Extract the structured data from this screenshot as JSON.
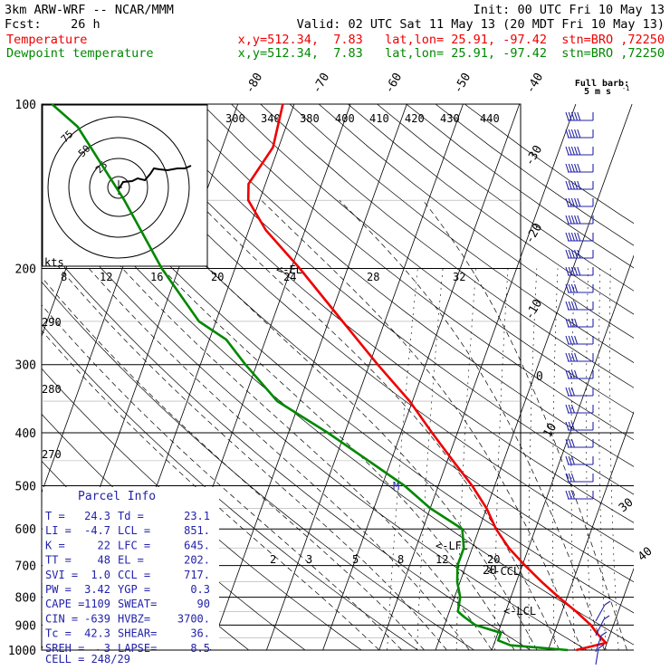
{
  "header": {
    "model": "3km ARW-WRF -- NCAR/MMM",
    "init": "Init: 00 UTC Fri 10 May 13",
    "fcst": "Fcst:    26 h",
    "valid": "Valid: 02 UTC Sat 11 May 13 (20 MDT Fri 10 May 13)",
    "temp_label": "Temperature",
    "temp_info": "x,y=512.34,  7.83   lat,lon= 25.91, -97.42  stn=BRO ,72250",
    "dew_label": "Dewpoint temperature",
    "dew_info": "x,y=512.34,  7.83   lat,lon= 25.91, -97.42  stn=BRO ,72250"
  },
  "colors": {
    "temperature": "#ee0000",
    "dewpoint": "#008800",
    "grid": "#000000",
    "wind": "#2222aa"
  },
  "barb_key": {
    "line1": "Full barb:",
    "line2": "5 m s",
    "sup": "-1"
  },
  "hodograph": {
    "units_label": "kts",
    "ring_labels": [
      "75",
      "50",
      "25"
    ]
  },
  "parcel_info": {
    "title": "Parcel Info",
    "rows": [
      {
        "l": "T   =",
        "lv": "24.3",
        "r": "Td =",
        "rv": "23.1"
      },
      {
        "l": "LI  =",
        "lv": "-4.7",
        "r": "LCL =",
        "rv": "851."
      },
      {
        "l": "K   =",
        "lv": "22",
        "r": "LFC =",
        "rv": "645."
      },
      {
        "l": "TT  =",
        "lv": "48",
        "r": "EL  =",
        "rv": "202."
      },
      {
        "l": "SVI =",
        "lv": "1.0",
        "r": "CCL =",
        "rv": "717."
      },
      {
        "l": "PW  =",
        "lv": "3.42",
        "r": "YGP =",
        "rv": "0.3"
      },
      {
        "l": "CAPE =",
        "lv": "1109",
        "r": "SWEAT=",
        "rv": "90"
      },
      {
        "l": "CIN =",
        "lv": "-639",
        "r": "HVBZ=",
        "rv": "3700."
      },
      {
        "l": "Tc  =",
        "lv": "42.3",
        "r": "SHEAR=",
        "rv": "36."
      },
      {
        "l": "SREH =",
        "lv": "3",
        "r": "LAPSE=",
        "rv": "8.5"
      }
    ],
    "cell": "CELL = 248/29"
  },
  "chart_data": {
    "type": "line",
    "subtype": "skew-T log-p sounding",
    "y_axis": {
      "scale": "log",
      "range": [
        1000,
        100
      ],
      "ticks": [
        100,
        200,
        300,
        400,
        500,
        600,
        700,
        800,
        900,
        1000
      ]
    },
    "isotherm_labels": [
      "-80",
      "-70",
      "-60",
      "-50",
      "-40",
      "-30",
      "-20",
      "-10",
      "0",
      "10",
      "20",
      "30",
      "40"
    ],
    "theta_labels": [
      "270",
      "280",
      "290",
      "300",
      "340",
      "380",
      "400",
      "410",
      "420",
      "430",
      "440"
    ],
    "mixing_ratio_labels_top": [
      "8",
      "12",
      "16",
      "20",
      "24",
      "28",
      "32"
    ],
    "mixing_ratio_labels_low": [
      "2",
      "3",
      "5",
      "8",
      "12",
      "20"
    ],
    "level_markers": [
      "EL",
      "M",
      "LFC",
      "CCL",
      "LCL"
    ],
    "grid": true,
    "series": [
      {
        "name": "Temperature",
        "color": "#ee0000",
        "points": [
          {
            "p": 1000,
            "t": 25.0
          },
          {
            "p": 970,
            "t": 29.8
          },
          {
            "p": 930,
            "t": 27.5
          },
          {
            "p": 900,
            "t": 26.0
          },
          {
            "p": 850,
            "t": 22.5
          },
          {
            "p": 800,
            "t": 18.5
          },
          {
            "p": 750,
            "t": 14.5
          },
          {
            "p": 700,
            "t": 10.5
          },
          {
            "p": 650,
            "t": 6.5
          },
          {
            "p": 600,
            "t": 3.0
          },
          {
            "p": 550,
            "t": 0.0
          },
          {
            "p": 500,
            "t": -4.0
          },
          {
            "p": 450,
            "t": -9.0
          },
          {
            "p": 400,
            "t": -14.5
          },
          {
            "p": 350,
            "t": -20.5
          },
          {
            "p": 300,
            "t": -28.5
          },
          {
            "p": 250,
            "t": -37.5
          },
          {
            "p": 200,
            "t": -48.5
          },
          {
            "p": 170,
            "t": -57.0
          },
          {
            "p": 150,
            "t": -62.0
          },
          {
            "p": 140,
            "t": -63.0
          },
          {
            "p": 120,
            "t": -61.0
          },
          {
            "p": 100,
            "t": -62.0
          }
        ]
      },
      {
        "name": "Dewpoint temperature",
        "color": "#008800",
        "points": [
          {
            "p": 1000,
            "t": 23.5
          },
          {
            "p": 980,
            "t": 13.0
          },
          {
            "p": 960,
            "t": 10.5
          },
          {
            "p": 930,
            "t": 10.5
          },
          {
            "p": 900,
            "t": 5.5
          },
          {
            "p": 870,
            "t": 3.0
          },
          {
            "p": 850,
            "t": 1.5
          },
          {
            "p": 800,
            "t": 1.0
          },
          {
            "p": 750,
            "t": -0.5
          },
          {
            "p": 700,
            "t": -1.5
          },
          {
            "p": 650,
            "t": -1.5
          },
          {
            "p": 600,
            "t": -3.0
          },
          {
            "p": 550,
            "t": -10.0
          },
          {
            "p": 500,
            "t": -16.0
          },
          {
            "p": 450,
            "t": -24.0
          },
          {
            "p": 400,
            "t": -33.0
          },
          {
            "p": 350,
            "t": -44.0
          },
          {
            "p": 300,
            "t": -52.0
          },
          {
            "p": 270,
            "t": -57.0
          },
          {
            "p": 250,
            "t": -63.0
          },
          {
            "p": 200,
            "t": -73.0
          },
          {
            "p": 150,
            "t": -84.0
          },
          {
            "p": 130,
            "t": -90.0
          },
          {
            "p": 110,
            "t": -97.0
          },
          {
            "p": 100,
            "t": -103.0
          }
        ]
      }
    ]
  }
}
